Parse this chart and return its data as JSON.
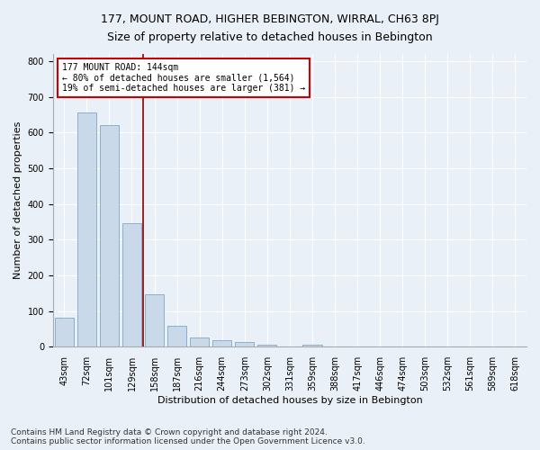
{
  "title": "177, MOUNT ROAD, HIGHER BEBINGTON, WIRRAL, CH63 8PJ",
  "subtitle": "Size of property relative to detached houses in Bebington",
  "xlabel": "Distribution of detached houses by size in Bebington",
  "ylabel": "Number of detached properties",
  "categories": [
    "43sqm",
    "72sqm",
    "101sqm",
    "129sqm",
    "158sqm",
    "187sqm",
    "216sqm",
    "244sqm",
    "273sqm",
    "302sqm",
    "331sqm",
    "359sqm",
    "388sqm",
    "417sqm",
    "446sqm",
    "474sqm",
    "503sqm",
    "532sqm",
    "561sqm",
    "589sqm",
    "618sqm"
  ],
  "values": [
    82,
    657,
    621,
    347,
    147,
    60,
    25,
    18,
    14,
    6,
    0,
    6,
    0,
    0,
    0,
    0,
    0,
    0,
    0,
    0,
    0
  ],
  "bar_color": "#c9d9ea",
  "bar_edge_color": "#8ab0cc",
  "vline_color": "#8b0000",
  "annotation_text": "177 MOUNT ROAD: 144sqm\n← 80% of detached houses are smaller (1,564)\n19% of semi-detached houses are larger (381) →",
  "annotation_box_color": "white",
  "annotation_box_edge_color": "#cc0000",
  "ylim": [
    0,
    820
  ],
  "yticks": [
    0,
    100,
    200,
    300,
    400,
    500,
    600,
    700,
    800
  ],
  "background_color": "#eaf0f8",
  "plot_background_color": "#eaf0f8",
  "footer": "Contains HM Land Registry data © Crown copyright and database right 2024.\nContains public sector information licensed under the Open Government Licence v3.0.",
  "title_fontsize": 9,
  "subtitle_fontsize": 9,
  "axis_label_fontsize": 8,
  "tick_fontsize": 7,
  "footer_fontsize": 6.5
}
